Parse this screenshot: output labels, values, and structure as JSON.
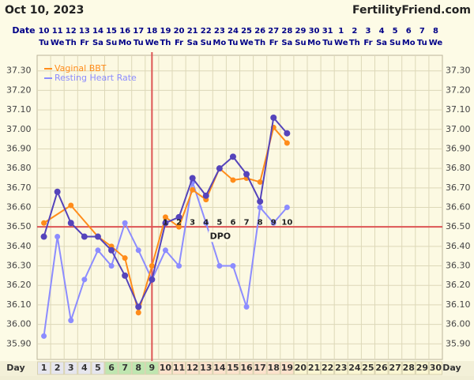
{
  "chart_data": {
    "type": "line",
    "title": "Oct 10, 2023",
    "site": "FertilityFriend.com",
    "date_label": "Date",
    "dates": [
      "10",
      "11",
      "12",
      "13",
      "14",
      "15",
      "16",
      "17",
      "18",
      "19",
      "20",
      "21",
      "22",
      "23",
      "24",
      "25",
      "26",
      "27",
      "28",
      "29",
      "30",
      "31",
      "1",
      "2",
      "3",
      "4",
      "5",
      "6",
      "7",
      "8"
    ],
    "weekdays": [
      "Tu",
      "We",
      "Th",
      "Fr",
      "Sa",
      "Su",
      "Mo",
      "Tu",
      "We",
      "Th",
      "Fr",
      "Sa",
      "Su",
      "Mo",
      "Tu",
      "We",
      "Th",
      "Fr",
      "Sa",
      "Su",
      "Mo",
      "Tu",
      "We",
      "Th",
      "Fr",
      "Sa",
      "Su",
      "Mo",
      "Tu",
      "We"
    ],
    "day_label": "Day",
    "days": [
      1,
      2,
      3,
      4,
      5,
      6,
      7,
      8,
      9,
      10,
      11,
      12,
      13,
      14,
      15,
      16,
      17,
      18,
      19,
      20,
      21,
      22,
      23,
      24,
      25,
      26,
      27,
      28,
      29,
      30
    ],
    "xlim": [
      0.5,
      30.5
    ],
    "ylim": [
      35.82,
      37.38
    ],
    "yticks": [
      {
        "value": 35.9,
        "label": "35.90"
      },
      {
        "value": 36.0,
        "label": "36.00"
      },
      {
        "value": 36.1,
        "label": "36.10"
      },
      {
        "value": 36.2,
        "label": "36.20"
      },
      {
        "value": 36.3,
        "label": "36.30"
      },
      {
        "value": 36.4,
        "label": "36.40"
      },
      {
        "value": 36.5,
        "label": "36.50"
      },
      {
        "value": 36.6,
        "label": "36.60"
      },
      {
        "value": 36.7,
        "label": "36.70"
      },
      {
        "value": 36.8,
        "label": "36.80"
      },
      {
        "value": 36.9,
        "label": "36.90"
      },
      {
        "value": 37.0,
        "label": "37.00"
      },
      {
        "value": 37.1,
        "label": "37.10"
      },
      {
        "value": 37.2,
        "label": "37.20"
      },
      {
        "value": 37.3,
        "label": "37.30"
      }
    ],
    "grid": true,
    "coverline": 36.5,
    "ovulation_day": 9,
    "dpo": {
      "x": [
        10,
        11,
        12,
        13,
        14,
        15,
        16,
        17,
        18,
        19
      ],
      "labels": [
        1,
        2,
        3,
        4,
        5,
        6,
        7,
        8,
        9,
        10
      ],
      "y": 36.54
    },
    "dpo_label": "DPO",
    "series": [
      {
        "color": "#5544bb",
        "x": [
          1,
          2,
          3,
          4,
          5,
          6,
          7,
          8,
          9,
          10,
          11,
          12,
          13,
          14,
          15,
          16,
          17,
          18,
          19
        ],
        "values": [
          36.45,
          36.68,
          36.52,
          36.45,
          36.45,
          36.38,
          36.25,
          36.09,
          36.23,
          36.52,
          36.55,
          36.75,
          36.66,
          36.8,
          36.86,
          36.77,
          36.63,
          37.06,
          36.98
        ]
      },
      {
        "name": "Vaginal BBT",
        "color": "#ff8c1a",
        "x": [
          1,
          3,
          5,
          6,
          7,
          8,
          9,
          10,
          11,
          12,
          13,
          14,
          15,
          16,
          17,
          18,
          19
        ],
        "values": [
          36.52,
          36.61,
          36.45,
          36.4,
          36.34,
          36.06,
          36.3,
          36.55,
          36.5,
          36.69,
          36.64,
          36.8,
          36.74,
          36.75,
          36.73,
          37.01,
          36.93
        ]
      },
      {
        "name": "Resting Heart Rate",
        "color": "#8c8cff",
        "x": [
          1,
          2,
          3,
          4,
          5,
          6,
          7,
          8,
          9,
          10,
          11,
          12,
          13,
          14,
          15,
          16,
          17,
          18,
          19
        ],
        "values": [
          35.94,
          36.45,
          36.02,
          36.23,
          36.38,
          36.3,
          36.52,
          36.38,
          36.23,
          36.38,
          36.3,
          36.73,
          36.52,
          36.3,
          36.3,
          36.09,
          36.6,
          36.52,
          36.6
        ]
      }
    ]
  }
}
